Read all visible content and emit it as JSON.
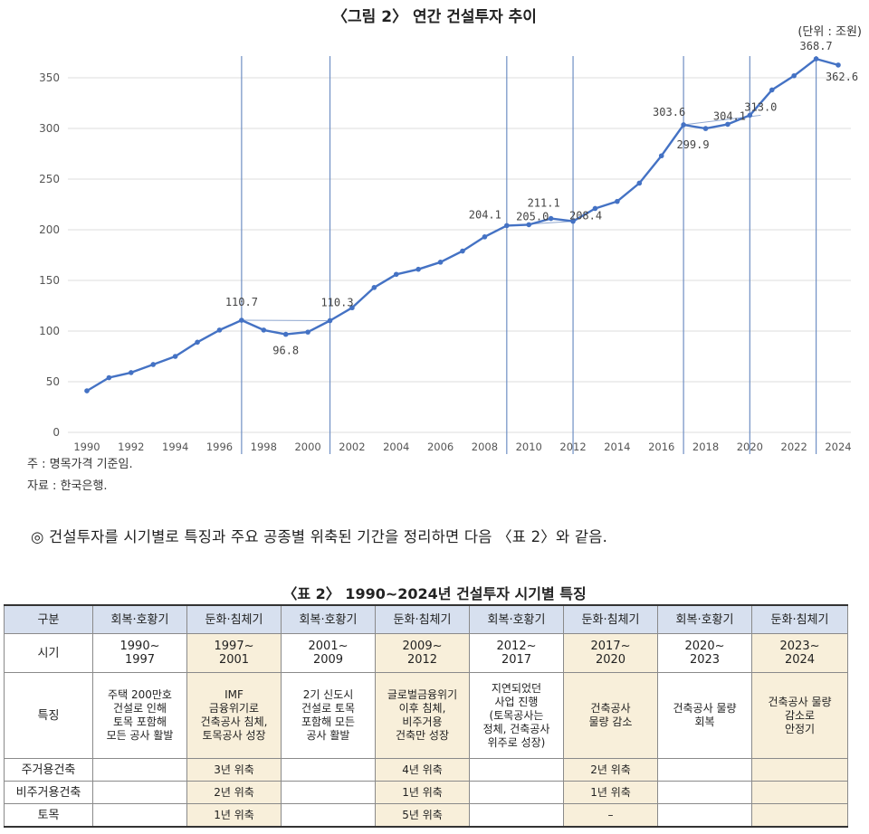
{
  "figure": {
    "title": "〈그림 2〉 연간 건설투자 추이",
    "unit": "(단위 : 조원)",
    "note": "주 : 명목가격 기준임.",
    "source": "자료 : 한국은행."
  },
  "chart_data": {
    "type": "line",
    "title": "〈그림 2〉 연간 건설투자 추이",
    "xlabel": "",
    "ylabel": "",
    "unit": "조원",
    "ylim": [
      0,
      375
    ],
    "yticks": [
      0,
      50,
      100,
      150,
      200,
      250,
      300,
      350
    ],
    "xticks": [
      1990,
      1992,
      1994,
      1996,
      1998,
      2000,
      2002,
      2004,
      2006,
      2008,
      2010,
      2012,
      2014,
      2016,
      2018,
      2020,
      2022,
      2024
    ],
    "grid": true,
    "x": [
      1990,
      1991,
      1992,
      1993,
      1994,
      1995,
      1996,
      1997,
      1998,
      1999,
      2000,
      2001,
      2002,
      2003,
      2004,
      2005,
      2006,
      2007,
      2008,
      2009,
      2010,
      2011,
      2012,
      2013,
      2014,
      2015,
      2016,
      2017,
      2018,
      2019,
      2020,
      2021,
      2022,
      2023,
      2024
    ],
    "values": [
      41,
      54,
      59,
      67,
      75,
      89,
      101,
      110.7,
      101,
      96.8,
      99,
      110.3,
      123,
      143,
      156,
      161,
      168,
      179,
      193,
      204.1,
      205.0,
      211.1,
      208.4,
      221,
      228,
      246,
      273,
      303.6,
      299.9,
      304.1,
      313.0,
      338,
      352,
      368.7,
      362.6
    ],
    "color": "#4472c4",
    "labeled_points": [
      {
        "x": 1997,
        "label": "110.7"
      },
      {
        "x": 1999,
        "label": "96.8"
      },
      {
        "x": 2001,
        "label": "110.3"
      },
      {
        "x": 2009,
        "label": "204.1"
      },
      {
        "x": 2010,
        "label": "205.0"
      },
      {
        "x": 2011,
        "label": "211.1"
      },
      {
        "x": 2012,
        "label": "208.4"
      },
      {
        "x": 2017,
        "label": "303.6"
      },
      {
        "x": 2018,
        "label": "299.9"
      },
      {
        "x": 2019,
        "label": "304.1"
      },
      {
        "x": 2020,
        "label": "313.0"
      },
      {
        "x": 2023,
        "label": "368.7"
      },
      {
        "x": 2024,
        "label": "362.6"
      }
    ],
    "period_markers": [
      1997,
      2001,
      2009,
      2012,
      2017,
      2020,
      2023
    ],
    "trend_segments": [
      [
        1997,
        2001
      ],
      [
        2009,
        2012
      ],
      [
        2017,
        2020
      ]
    ]
  },
  "summary": "◎ 건설투자를 시기별로 특징과 주요 공종별 위축된 기간을 정리하면 다음 〈표 2〉와 같음.",
  "table": {
    "title": "〈표 2〉 1990~2024년 건설투자 시기별 특징",
    "headers": [
      "구분",
      "회복·호황기",
      "둔화·침체기",
      "회복·호황기",
      "둔화·침체기",
      "회복·호황기",
      "둔화·침체기",
      "회복·호황기",
      "둔화·침체기"
    ],
    "row_period": {
      "label": "시기",
      "cells": [
        {
          "l1": "1990~",
          "l2": "1997"
        },
        {
          "l1": "1997~",
          "l2": "2001"
        },
        {
          "l1": "2001~",
          "l2": "2009"
        },
        {
          "l1": "2009~",
          "l2": "2012"
        },
        {
          "l1": "2012~",
          "l2": "2017"
        },
        {
          "l1": "2017~",
          "l2": "2020"
        },
        {
          "l1": "2020~",
          "l2": "2023"
        },
        {
          "l1": "2023~",
          "l2": "2024"
        }
      ]
    },
    "row_feature": {
      "label": "특징",
      "cells": [
        [
          "주택 200만호",
          "건설로 인해",
          "토목 포함해",
          "모든 공사 활발"
        ],
        [
          "IMF",
          "금융위기로",
          "건축공사 침체,",
          "토목공사 성장"
        ],
        [
          "2기 신도시",
          "건설로 토목",
          "포함해 모든",
          "공사 활발"
        ],
        [
          "글로벌금융위기",
          "이후 침체,",
          "비주거용",
          "건축만 성장"
        ],
        [
          "지연되었던",
          "사업 진행",
          "(토목공사는",
          "정체, 건축공사",
          "위주로 성장)"
        ],
        [
          "건축공사",
          "물량 감소"
        ],
        [
          "건축공사 물량",
          "회복"
        ],
        [
          "건축공사 물량",
          "감소로",
          "안정기"
        ]
      ]
    },
    "row_residential": {
      "label": "주거용건축",
      "cells": [
        "",
        "3년 위축",
        "",
        "4년 위축",
        "",
        "2년 위축",
        "",
        ""
      ]
    },
    "row_nonresidential": {
      "label": "비주거용건축",
      "cells": [
        "",
        "2년 위축",
        "",
        "1년 위축",
        "",
        "1년 위축",
        "",
        ""
      ]
    },
    "row_civil": {
      "label": "토목",
      "cells": [
        "",
        "1년 위축",
        "",
        "5년 위축",
        "",
        "–",
        "",
        ""
      ]
    }
  }
}
